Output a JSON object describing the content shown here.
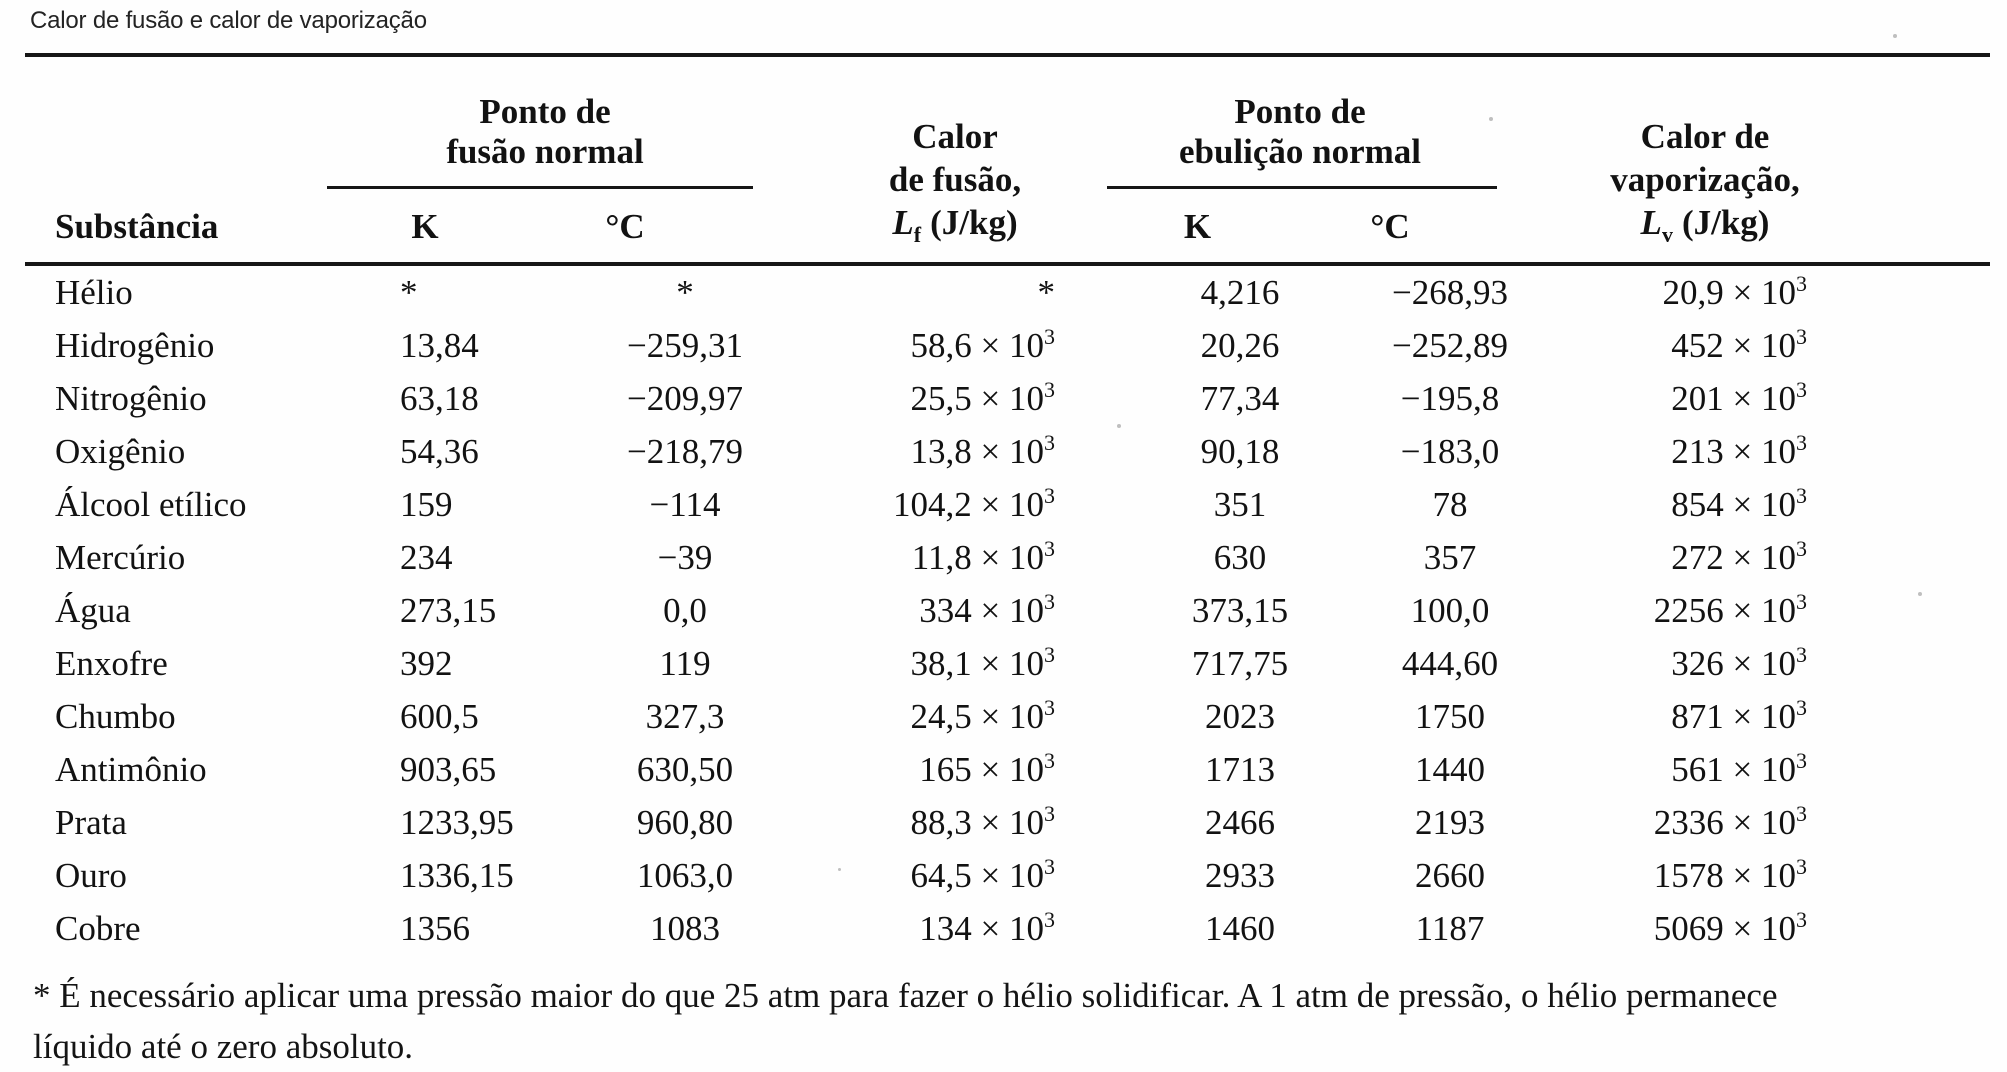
{
  "caption": "Calor de fusão e calor de vaporização",
  "table": {
    "column_keys": [
      "substance",
      "fusion-K",
      "fusion-C",
      "heat-of-fusion",
      "boiling-K",
      "boiling-C",
      "heat-of-vaporization"
    ],
    "header": {
      "substance": "Substância",
      "fusion_group": {
        "line1": "Ponto de",
        "line2": "fusão normal",
        "k": "K",
        "c": "°C"
      },
      "heat_fusion": {
        "line1": "Calor",
        "line2": "de fusão,",
        "symbol": "L",
        "symbol_sub": "f",
        "unit": "(J/kg)"
      },
      "boiling_group": {
        "line1": "Ponto de",
        "line2": "ebulição normal",
        "k": "K",
        "c": "°C"
      },
      "heat_vapor": {
        "line1": "Calor de",
        "line2": "vaporização,",
        "symbol": "L",
        "symbol_sub": "v",
        "unit": "(J/kg)"
      }
    },
    "rows": [
      [
        "Hélio",
        "*",
        "*",
        "*",
        "4,216",
        "−268,93",
        "20,9 × 10^3"
      ],
      [
        "Hidrogênio",
        "13,84",
        "−259,31",
        "58,6 × 10^3",
        "20,26",
        "−252,89",
        "452 × 10^3"
      ],
      [
        "Nitrogênio",
        "63,18",
        "−209,97",
        "25,5 × 10^3",
        "77,34",
        "−195,8",
        "201 × 10^3"
      ],
      [
        "Oxigênio",
        "54,36",
        "−218,79",
        "13,8 × 10^3",
        "90,18",
        "−183,0",
        "213 × 10^3"
      ],
      [
        "Álcool etílico",
        "159",
        "−114",
        "104,2 × 10^3",
        "351",
        "78",
        "854 × 10^3"
      ],
      [
        "Mercúrio",
        "234",
        "−39",
        "11,8 × 10^3",
        "630",
        "357",
        "272 × 10^3"
      ],
      [
        "Água",
        "273,15",
        "0,0",
        "334 × 10^3",
        "373,15",
        "100,0",
        "2256 × 10^3"
      ],
      [
        "Enxofre",
        "392",
        "119",
        "38,1 × 10^3",
        "717,75",
        "444,60",
        "326 × 10^3"
      ],
      [
        "Chumbo",
        "600,5",
        "327,3",
        "24,5 × 10^3",
        "2023",
        "1750",
        "871 × 10^3"
      ],
      [
        "Antimônio",
        "903,65",
        "630,50",
        "165 × 10^3",
        "1713",
        "1440",
        "561 × 10^3"
      ],
      [
        "Prata",
        "1233,95",
        "960,80",
        "88,3 × 10^3",
        "2466",
        "2193",
        "2336 × 10^3"
      ],
      [
        "Ouro",
        "1336,15",
        "1063,0",
        "64,5 × 10^3",
        "2933",
        "2660",
        "1578 × 10^3"
      ],
      [
        "Cobre",
        "1356",
        "1083",
        "134 × 10^3",
        "1460",
        "1187",
        "5069 × 10^3"
      ]
    ]
  },
  "footnote": {
    "line1": "* É necessário aplicar uma pressão maior do que 25 atm para fazer o hélio solidificar. A 1 atm de pressão, o hélio permanece",
    "line2": "líquido até o zero absoluto."
  }
}
